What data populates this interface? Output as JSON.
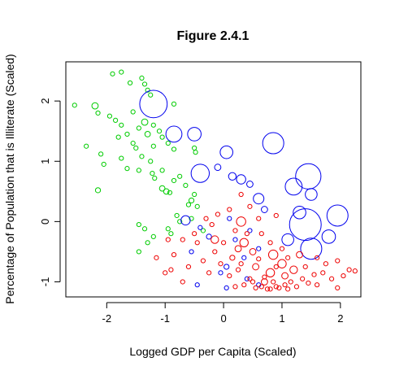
{
  "chart_data": {
    "type": "scatter",
    "title": "Figure 2.4.1",
    "xlabel": "Logged GDP per Capita (Scaled)",
    "ylabel": "Percentage of Population that is Illiterate (Scaled)",
    "xlim": [
      -2.7,
      2.35
    ],
    "ylim": [
      -1.25,
      2.65
    ],
    "xticks": [
      -2,
      -1,
      0,
      1,
      2
    ],
    "yticks": [
      -1,
      0,
      1,
      2
    ],
    "xtick_labels": [
      "-2",
      "-1",
      "0",
      "1",
      "2"
    ],
    "ytick_labels": [
      "-1",
      "0",
      "1",
      "2"
    ],
    "grid": false,
    "marker": "open-circle",
    "series": [
      {
        "color": "#00cc00",
        "points": [
          {
            "x": -2.55,
            "y": 1.93,
            "s": 1
          },
          {
            "x": -2.2,
            "y": 1.92,
            "s": 1.5
          },
          {
            "x": -1.9,
            "y": 2.45,
            "s": 1
          },
          {
            "x": -1.75,
            "y": 2.48,
            "s": 1
          },
          {
            "x": -1.6,
            "y": 2.3,
            "s": 1
          },
          {
            "x": -1.4,
            "y": 2.38,
            "s": 1
          },
          {
            "x": -1.35,
            "y": 2.28,
            "s": 1
          },
          {
            "x": -1.3,
            "y": 2.18,
            "s": 1
          },
          {
            "x": -1.25,
            "y": 2.1,
            "s": 1
          },
          {
            "x": -0.85,
            "y": 1.95,
            "s": 1
          },
          {
            "x": -2.15,
            "y": 1.8,
            "s": 1
          },
          {
            "x": -1.95,
            "y": 1.75,
            "s": 1
          },
          {
            "x": -1.85,
            "y": 1.68,
            "s": 1
          },
          {
            "x": -1.75,
            "y": 1.6,
            "s": 1
          },
          {
            "x": -1.55,
            "y": 1.82,
            "s": 1
          },
          {
            "x": -1.35,
            "y": 1.65,
            "s": 1.5
          },
          {
            "x": -1.45,
            "y": 1.55,
            "s": 1
          },
          {
            "x": -1.2,
            "y": 1.6,
            "s": 1
          },
          {
            "x": -1.65,
            "y": 1.45,
            "s": 1
          },
          {
            "x": -1.3,
            "y": 1.45,
            "s": 1.3
          },
          {
            "x": -1.1,
            "y": 1.5,
            "s": 1
          },
          {
            "x": -1.05,
            "y": 1.4,
            "s": 1
          },
          {
            "x": -2.35,
            "y": 1.25,
            "s": 1
          },
          {
            "x": -1.8,
            "y": 1.4,
            "s": 1
          },
          {
            "x": -1.55,
            "y": 1.3,
            "s": 1
          },
          {
            "x": -1.5,
            "y": 1.22,
            "s": 1
          },
          {
            "x": -1.2,
            "y": 1.25,
            "s": 1
          },
          {
            "x": -0.95,
            "y": 1.3,
            "s": 1
          },
          {
            "x": -0.85,
            "y": 1.2,
            "s": 1
          },
          {
            "x": -0.5,
            "y": 1.22,
            "s": 1
          },
          {
            "x": -0.48,
            "y": 1.15,
            "s": 1
          },
          {
            "x": -2.1,
            "y": 1.12,
            "s": 1
          },
          {
            "x": -1.75,
            "y": 1.05,
            "s": 1
          },
          {
            "x": -1.4,
            "y": 1.08,
            "s": 1
          },
          {
            "x": -1.25,
            "y": 1.0,
            "s": 1
          },
          {
            "x": -2.05,
            "y": 0.95,
            "s": 1
          },
          {
            "x": -1.65,
            "y": 0.88,
            "s": 1
          },
          {
            "x": -1.45,
            "y": 0.85,
            "s": 1
          },
          {
            "x": -1.05,
            "y": 0.85,
            "s": 1
          },
          {
            "x": -1.22,
            "y": 0.8,
            "s": 1
          },
          {
            "x": -0.75,
            "y": 0.75,
            "s": 1
          },
          {
            "x": -1.18,
            "y": 0.72,
            "s": 1
          },
          {
            "x": -0.85,
            "y": 0.68,
            "s": 1
          },
          {
            "x": -0.65,
            "y": 0.6,
            "s": 1
          },
          {
            "x": -1.05,
            "y": 0.55,
            "s": 1.3
          },
          {
            "x": -0.98,
            "y": 0.5,
            "s": 1.3
          },
          {
            "x": -0.92,
            "y": 0.48,
            "s": 1
          },
          {
            "x": -2.15,
            "y": 0.52,
            "s": 1.2
          },
          {
            "x": -0.5,
            "y": 0.45,
            "s": 1
          },
          {
            "x": -0.55,
            "y": 0.35,
            "s": 1.2
          },
          {
            "x": -0.6,
            "y": 0.28,
            "s": 1
          },
          {
            "x": -0.45,
            "y": 0.25,
            "s": 1
          },
          {
            "x": -0.8,
            "y": 0.1,
            "s": 1
          },
          {
            "x": -0.75,
            "y": 0.0,
            "s": 1
          },
          {
            "x": -1.45,
            "y": -0.05,
            "s": 1
          },
          {
            "x": -1.35,
            "y": -0.12,
            "s": 1
          },
          {
            "x": -1.2,
            "y": -0.25,
            "s": 1
          },
          {
            "x": -1.3,
            "y": -0.35,
            "s": 1
          },
          {
            "x": -1.45,
            "y": -0.5,
            "s": 1
          },
          {
            "x": -0.95,
            "y": -0.12,
            "s": 1
          },
          {
            "x": -0.9,
            "y": -0.2,
            "s": 1
          },
          {
            "x": -0.55,
            "y": 0.05,
            "s": 1
          },
          {
            "x": -0.35,
            "y": -0.15,
            "s": 1
          }
        ]
      },
      {
        "color": "#0000ee",
        "points": [
          {
            "x": -1.2,
            "y": 1.95,
            "s": 6.5
          },
          {
            "x": -0.85,
            "y": 1.45,
            "s": 3.8
          },
          {
            "x": -0.5,
            "y": 1.45,
            "s": 3.2
          },
          {
            "x": -0.4,
            "y": 0.8,
            "s": 4.3
          },
          {
            "x": 0.05,
            "y": 1.15,
            "s": 3.0
          },
          {
            "x": -0.1,
            "y": 0.9,
            "s": 1.5
          },
          {
            "x": 0.15,
            "y": 0.75,
            "s": 1.8
          },
          {
            "x": 0.3,
            "y": 0.7,
            "s": 2.2
          },
          {
            "x": 0.45,
            "y": 0.62,
            "s": 1.5
          },
          {
            "x": 0.85,
            "y": 1.3,
            "s": 5.0
          },
          {
            "x": 1.45,
            "y": 0.75,
            "s": 6.0
          },
          {
            "x": 1.2,
            "y": 0.58,
            "s": 4.0
          },
          {
            "x": 1.5,
            "y": 0.45,
            "s": 2.8
          },
          {
            "x": 0.6,
            "y": 0.38,
            "s": 2.5
          },
          {
            "x": 0.7,
            "y": 0.2,
            "s": 1.5
          },
          {
            "x": 1.3,
            "y": 0.15,
            "s": 3.0
          },
          {
            "x": 1.4,
            "y": -0.05,
            "s": 7.5
          },
          {
            "x": 1.95,
            "y": 0.1,
            "s": 5.0
          },
          {
            "x": 1.8,
            "y": -0.25,
            "s": 3.2
          },
          {
            "x": 1.1,
            "y": -0.3,
            "s": 2.8
          },
          {
            "x": 1.5,
            "y": -0.45,
            "s": 5.0
          },
          {
            "x": -0.65,
            "y": 0.02,
            "s": 2.2
          },
          {
            "x": -0.25,
            "y": -0.25,
            "s": 1.2
          },
          {
            "x": -0.4,
            "y": -0.1,
            "s": 1
          },
          {
            "x": 0.1,
            "y": 0.05,
            "s": 1
          },
          {
            "x": 0.2,
            "y": -0.3,
            "s": 1
          },
          {
            "x": 0.45,
            "y": -0.15,
            "s": 1
          },
          {
            "x": 0.6,
            "y": -0.45,
            "s": 1
          },
          {
            "x": 0.35,
            "y": -0.6,
            "s": 1
          },
          {
            "x": 0.05,
            "y": -0.75,
            "s": 1.2
          },
          {
            "x": -0.05,
            "y": -0.85,
            "s": 1
          },
          {
            "x": 0.05,
            "y": -1.1,
            "s": 1
          },
          {
            "x": -0.45,
            "y": -1.05,
            "s": 1
          },
          {
            "x": 0.4,
            "y": -0.95,
            "s": 1
          },
          {
            "x": 0.6,
            "y": -1.05,
            "s": 1
          },
          {
            "x": -0.55,
            "y": -0.5,
            "s": 1
          }
        ]
      },
      {
        "color": "#ee0000",
        "points": [
          {
            "x": 0.3,
            "y": 0.0,
            "s": 2.2
          },
          {
            "x": -0.15,
            "y": -0.3,
            "s": 1.8
          },
          {
            "x": 0.35,
            "y": -0.35,
            "s": 2.0
          },
          {
            "x": 0.5,
            "y": -0.5,
            "s": 1.5
          },
          {
            "x": 0.85,
            "y": -0.55,
            "s": 2.2
          },
          {
            "x": 1.0,
            "y": -0.7,
            "s": 2.0
          },
          {
            "x": 0.8,
            "y": -0.85,
            "s": 2.0
          },
          {
            "x": 1.2,
            "y": -0.8,
            "s": 1.8
          },
          {
            "x": 1.3,
            "y": -0.55,
            "s": 1.5
          },
          {
            "x": 0.55,
            "y": -0.75,
            "s": 1.5
          },
          {
            "x": 0.7,
            "y": -1.0,
            "s": 1.5
          },
          {
            "x": 1.05,
            "y": -0.9,
            "s": 1.5
          },
          {
            "x": 0.25,
            "y": -0.45,
            "s": 1.5
          },
          {
            "x": 0.15,
            "y": -0.6,
            "s": 1.2
          },
          {
            "x": 0.6,
            "y": 0.05,
            "s": 1
          },
          {
            "x": 0.9,
            "y": 0.1,
            "s": 1
          },
          {
            "x": 0.1,
            "y": 0.2,
            "s": 1
          },
          {
            "x": -0.1,
            "y": 0.12,
            "s": 1
          },
          {
            "x": 0.45,
            "y": 0.25,
            "s": 1
          },
          {
            "x": 0.3,
            "y": 0.45,
            "s": 1
          },
          {
            "x": -0.3,
            "y": 0.05,
            "s": 1
          },
          {
            "x": -0.5,
            "y": -0.2,
            "s": 1
          },
          {
            "x": -0.7,
            "y": -0.3,
            "s": 1
          },
          {
            "x": -0.95,
            "y": -0.3,
            "s": 1
          },
          {
            "x": -0.85,
            "y": -0.55,
            "s": 1
          },
          {
            "x": -0.9,
            "y": -0.8,
            "s": 1
          },
          {
            "x": -0.6,
            "y": -0.75,
            "s": 1
          },
          {
            "x": -0.35,
            "y": -0.65,
            "s": 1
          },
          {
            "x": -0.15,
            "y": -0.5,
            "s": 1
          },
          {
            "x": -0.05,
            "y": -0.7,
            "s": 1
          },
          {
            "x": 0.1,
            "y": -0.9,
            "s": 1
          },
          {
            "x": 0.25,
            "y": -0.8,
            "s": 1
          },
          {
            "x": 0.35,
            "y": -1.05,
            "s": 1
          },
          {
            "x": 0.45,
            "y": -0.95,
            "s": 1
          },
          {
            "x": 0.55,
            "y": -1.1,
            "s": 1
          },
          {
            "x": 0.65,
            "y": -1.08,
            "s": 1
          },
          {
            "x": 0.75,
            "y": -1.12,
            "s": 1
          },
          {
            "x": 0.85,
            "y": -1.0,
            "s": 1
          },
          {
            "x": 0.95,
            "y": -1.1,
            "s": 1
          },
          {
            "x": 1.05,
            "y": -1.05,
            "s": 1
          },
          {
            "x": 1.15,
            "y": -1.0,
            "s": 1
          },
          {
            "x": 1.25,
            "y": -1.08,
            "s": 1
          },
          {
            "x": 1.35,
            "y": -0.95,
            "s": 1
          },
          {
            "x": 1.45,
            "y": -1.02,
            "s": 1
          },
          {
            "x": 1.55,
            "y": -0.88,
            "s": 1
          },
          {
            "x": 1.6,
            "y": -1.05,
            "s": 1
          },
          {
            "x": 1.7,
            "y": -0.85,
            "s": 1
          },
          {
            "x": 1.85,
            "y": -0.95,
            "s": 1
          },
          {
            "x": 1.95,
            "y": -1.1,
            "s": 1
          },
          {
            "x": 2.05,
            "y": -0.9,
            "s": 1
          },
          {
            "x": 2.15,
            "y": -0.8,
            "s": 1
          },
          {
            "x": 2.25,
            "y": -0.82,
            "s": 1
          },
          {
            "x": 1.75,
            "y": -0.7,
            "s": 1
          },
          {
            "x": 1.95,
            "y": -0.65,
            "s": 1
          },
          {
            "x": 0.65,
            "y": -0.2,
            "s": 1
          },
          {
            "x": 0.8,
            "y": -0.35,
            "s": 1
          },
          {
            "x": 1.0,
            "y": -0.45,
            "s": 1
          },
          {
            "x": 0.4,
            "y": -0.2,
            "s": 1
          },
          {
            "x": 0.2,
            "y": -0.15,
            "s": 1
          },
          {
            "x": -0.2,
            "y": -0.05,
            "s": 1
          },
          {
            "x": 0.6,
            "y": -0.62,
            "s": 1
          },
          {
            "x": 0.9,
            "y": -0.75,
            "s": 1
          },
          {
            "x": 1.1,
            "y": -0.6,
            "s": 1
          },
          {
            "x": 0.5,
            "y": -1.0,
            "s": 1
          },
          {
            "x": 0.7,
            "y": -0.92,
            "s": 1
          },
          {
            "x": 0.2,
            "y": -1.08,
            "s": 1
          },
          {
            "x": 0.9,
            "y": -1.08,
            "s": 1
          },
          {
            "x": 1.4,
            "y": -0.75,
            "s": 1
          },
          {
            "x": 1.6,
            "y": -0.6,
            "s": 1
          },
          {
            "x": 0.0,
            "y": -0.35,
            "s": 1
          },
          {
            "x": -0.45,
            "y": -0.35,
            "s": 1
          },
          {
            "x": -1.15,
            "y": -0.6,
            "s": 1
          },
          {
            "x": -1.0,
            "y": -0.85,
            "s": 1
          },
          {
            "x": -0.7,
            "y": -1.0,
            "s": 1
          },
          {
            "x": 0.8,
            "y": -1.12,
            "s": 1
          },
          {
            "x": 1.1,
            "y": -1.12,
            "s": 1
          },
          {
            "x": 0.3,
            "y": -0.7,
            "s": 1
          },
          {
            "x": -0.25,
            "y": -0.85,
            "s": 1
          }
        ]
      }
    ]
  }
}
